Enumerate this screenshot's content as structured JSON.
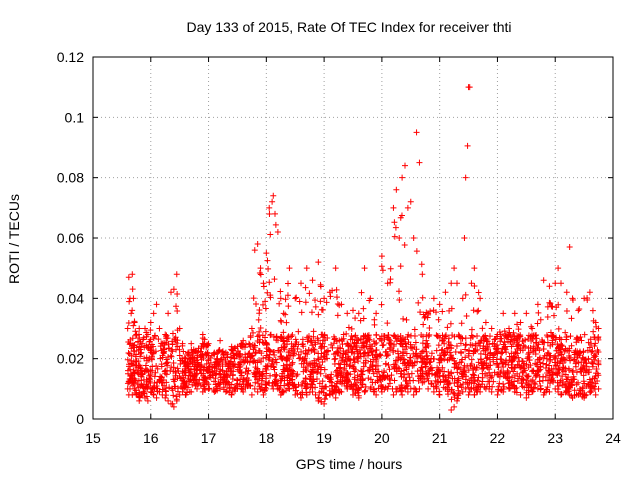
{
  "chart_data": {
    "type": "scatter",
    "title": "Day 133 of 2015, Rate Of TEC Index for receiver thti",
    "xlabel": "GPS time / hours",
    "ylabel": "ROTI / TECUs",
    "xlim": [
      15,
      24
    ],
    "ylim": [
      0,
      0.12
    ],
    "xticks": [
      15,
      16,
      17,
      18,
      19,
      20,
      21,
      22,
      23,
      24
    ],
    "yticks": [
      0,
      0.02,
      0.04,
      0.06,
      0.08,
      0.1,
      0.12
    ],
    "ytick_labels": [
      "0",
      "0.02",
      "0.04",
      "0.06",
      "0.08",
      "0.1",
      "0.12"
    ],
    "grid": true,
    "marker": "+",
    "color": "#ff0000",
    "series": [
      {
        "name": "ROTI",
        "x": [
          15.6,
          15.62,
          15.64,
          15.66,
          15.68,
          15.7,
          15.72,
          15.75,
          15.8,
          15.85,
          15.9,
          15.95,
          16.0,
          16.05,
          16.1,
          16.15,
          16.2,
          16.25,
          16.3,
          16.35,
          16.4,
          16.45,
          16.5,
          16.55,
          16.6,
          16.7,
          16.8,
          16.9,
          17.0,
          17.1,
          17.2,
          17.3,
          17.4,
          17.5,
          17.6,
          17.7,
          17.75,
          17.8,
          17.85,
          17.9,
          17.95,
          18.0,
          18.05,
          18.1,
          18.12,
          18.15,
          18.2,
          18.25,
          18.3,
          18.4,
          18.5,
          18.6,
          18.7,
          18.8,
          18.9,
          19.0,
          19.1,
          19.2,
          19.3,
          19.4,
          19.5,
          19.6,
          19.7,
          19.8,
          19.9,
          20.0,
          20.1,
          20.2,
          20.25,
          20.3,
          20.35,
          20.4,
          20.45,
          20.5,
          20.55,
          20.6,
          20.65,
          20.7,
          20.8,
          20.9,
          21.0,
          21.1,
          21.2,
          21.25,
          21.3,
          21.4,
          21.45,
          21.5,
          21.52,
          21.55,
          21.6,
          21.7,
          21.8,
          21.9,
          22.0,
          22.1,
          22.2,
          22.3,
          22.4,
          22.5,
          22.6,
          22.7,
          22.8,
          22.9,
          23.0,
          23.05,
          23.1,
          23.2,
          23.25,
          23.3,
          23.4,
          23.5,
          23.6,
          23.7,
          23.75
        ],
        "y_upper": [
          0.03,
          0.047,
          0.04,
          0.035,
          0.048,
          0.04,
          0.032,
          0.028,
          0.03,
          0.025,
          0.03,
          0.028,
          0.032,
          0.035,
          0.038,
          0.03,
          0.025,
          0.028,
          0.035,
          0.042,
          0.043,
          0.048,
          0.03,
          0.025,
          0.02,
          0.025,
          0.022,
          0.028,
          0.025,
          0.022,
          0.026,
          0.022,
          0.024,
          0.024,
          0.026,
          0.025,
          0.03,
          0.056,
          0.058,
          0.05,
          0.045,
          0.055,
          0.07,
          0.072,
          0.074,
          0.068,
          0.062,
          0.04,
          0.035,
          0.05,
          0.04,
          0.045,
          0.05,
          0.046,
          0.052,
          0.04,
          0.042,
          0.05,
          0.038,
          0.035,
          0.036,
          0.035,
          0.05,
          0.04,
          0.035,
          0.054,
          0.045,
          0.07,
          0.076,
          0.06,
          0.08,
          0.084,
          0.07,
          0.072,
          0.06,
          0.095,
          0.085,
          0.048,
          0.035,
          0.04,
          0.038,
          0.042,
          0.045,
          0.05,
          0.045,
          0.04,
          0.08,
          0.11,
          0.11,
          0.045,
          0.05,
          0.04,
          0.032,
          0.03,
          0.028,
          0.035,
          0.03,
          0.035,
          0.032,
          0.035,
          0.03,
          0.038,
          0.046,
          0.044,
          0.045,
          0.05,
          0.045,
          0.042,
          0.057,
          0.04,
          0.036,
          0.04,
          0.042,
          0.032,
          0.03
        ],
        "y_lower": [
          0.01,
          0.008,
          0.01,
          0.012,
          0.008,
          0.012,
          0.01,
          0.008,
          0.006,
          0.008,
          0.007,
          0.006,
          0.009,
          0.008,
          0.007,
          0.009,
          0.008,
          0.007,
          0.006,
          0.005,
          0.004,
          0.006,
          0.008,
          0.009,
          0.008,
          0.009,
          0.01,
          0.009,
          0.01,
          0.009,
          0.01,
          0.009,
          0.008,
          0.01,
          0.009,
          0.011,
          0.008,
          0.01,
          0.009,
          0.01,
          0.008,
          0.01,
          0.012,
          0.011,
          0.01,
          0.012,
          0.01,
          0.008,
          0.009,
          0.01,
          0.008,
          0.007,
          0.008,
          0.009,
          0.006,
          0.005,
          0.008,
          0.007,
          0.009,
          0.01,
          0.008,
          0.007,
          0.009,
          0.01,
          0.008,
          0.009,
          0.01,
          0.008,
          0.009,
          0.01,
          0.008,
          0.01,
          0.009,
          0.01,
          0.008,
          0.009,
          0.01,
          0.012,
          0.01,
          0.009,
          0.008,
          0.01,
          0.003,
          0.004,
          0.006,
          0.009,
          0.01,
          0.008,
          0.009,
          0.01,
          0.008,
          0.009,
          0.01,
          0.009,
          0.008,
          0.009,
          0.01,
          0.009,
          0.008,
          0.007,
          0.009,
          0.01,
          0.008,
          0.009,
          0.01,
          0.009,
          0.008,
          0.009,
          0.008,
          0.007,
          0.008,
          0.007,
          0.009,
          0.008,
          0.01
        ]
      }
    ]
  }
}
